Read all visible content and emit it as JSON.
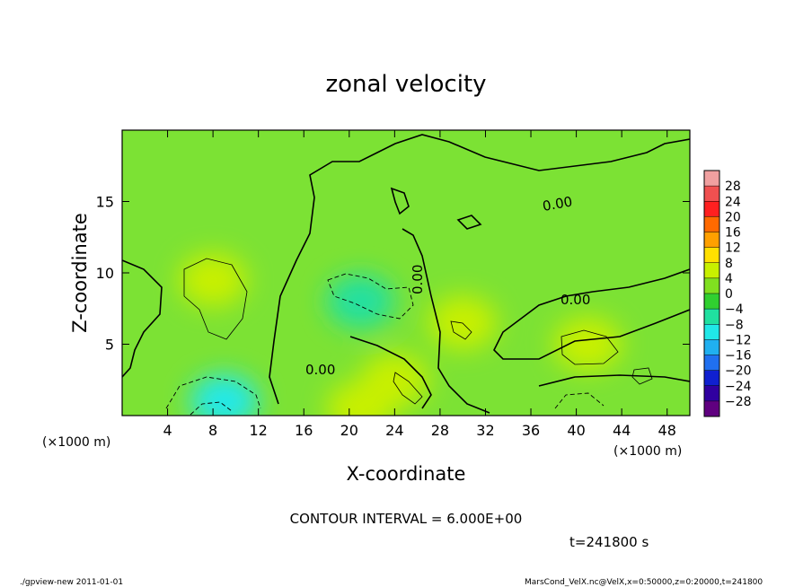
{
  "chart_data": {
    "type": "heatmap",
    "title": "zonal velocity",
    "xlabel": "X-coordinate",
    "ylabel": "Z-coordinate",
    "x_unit_left": "(×1000 m)",
    "x_unit_right": "(×1000 m)",
    "xlim": [
      0,
      50
    ],
    "ylim": [
      0,
      20
    ],
    "x_ticks": [
      4,
      8,
      12,
      16,
      20,
      24,
      28,
      32,
      36,
      40,
      44,
      48
    ],
    "y_ticks": [
      5,
      10,
      15
    ],
    "colorbar": {
      "levels": [
        "28",
        "24",
        "20",
        "16",
        "12",
        "8",
        "4",
        "0",
        "−4",
        "−8",
        "−12",
        "−16",
        "−20",
        "−24",
        "−28"
      ],
      "colors": [
        "#f0a0a0",
        "#f05050",
        "#ff2020",
        "#ff6a00",
        "#ffa000",
        "#ffe000",
        "#c8f000",
        "#80e020",
        "#30d030",
        "#20e0a0",
        "#20e8e8",
        "#20b0f0",
        "#2070f0",
        "#1020d0",
        "#3000a0",
        "#600080"
      ]
    },
    "contour_interval_text": "CONTOUR INTERVAL = 6.000E+00",
    "contour_labels": [
      "0.00",
      "0.00",
      "0.00",
      "0.00"
    ],
    "time_text": "t=241800 s",
    "features": [
      {
        "x": 8,
        "z": 9.5,
        "u": 8
      },
      {
        "x": 9,
        "z": 1,
        "u": -10
      },
      {
        "x": 21,
        "z": 8,
        "u": -7
      },
      {
        "x": 41,
        "z": 5,
        "u": 6
      },
      {
        "x": 30,
        "z": 6.5,
        "u": 6
      },
      {
        "x": 24,
        "z": 2.5,
        "u": 5
      },
      {
        "x": 21,
        "z": 0.5,
        "u": 8
      }
    ]
  },
  "footer": {
    "left": "./gpview-new   2011-01-01",
    "right": "MarsCond_VelX.nc@VelX,x=0:50000,z=0:20000,t=241800"
  }
}
